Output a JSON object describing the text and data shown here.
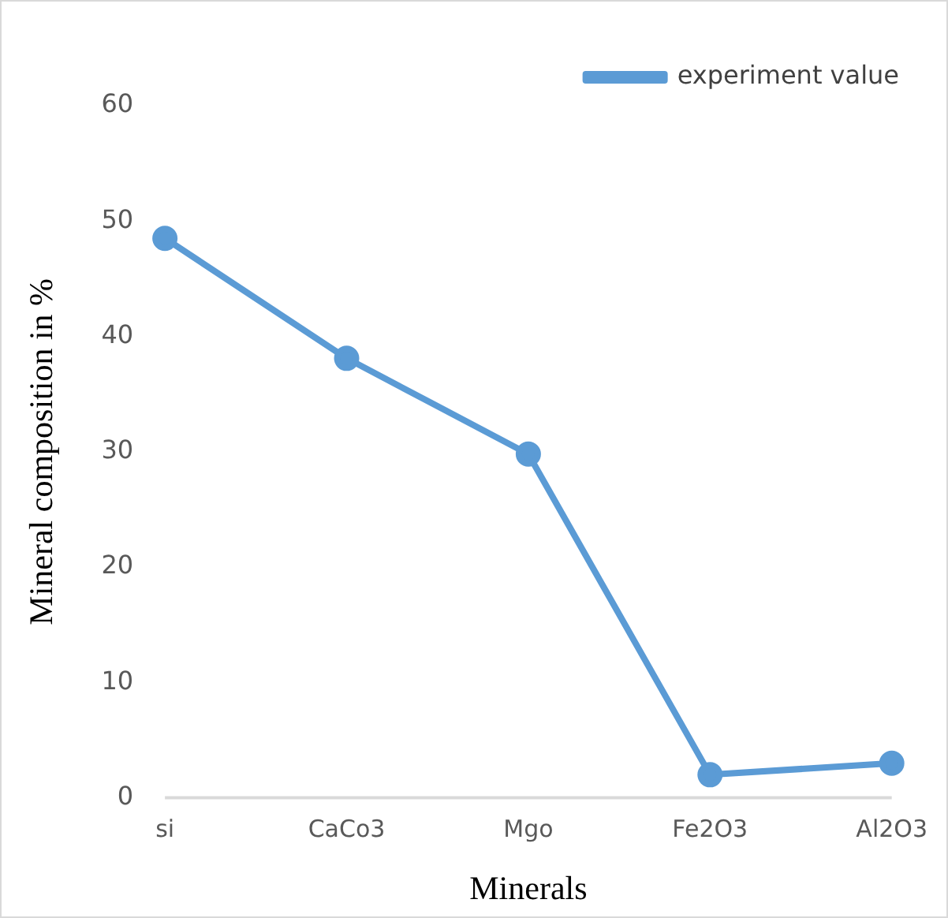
{
  "chart_data": {
    "type": "line",
    "xlabel": "Minerals",
    "ylabel": "Mineral composition in %",
    "categories": [
      "si",
      "CaCo3",
      "Mgo",
      "Fe2O3",
      "Al2O3"
    ],
    "series": [
      {
        "name": "experiment value",
        "color": "#5b9bd5",
        "values": [
          48.5,
          38.1,
          29.8,
          2.0,
          3.0
        ]
      }
    ],
    "ylim": [
      0,
      60
    ],
    "yticks": [
      0,
      10,
      20,
      30,
      40,
      50,
      60
    ],
    "grid": false,
    "legend": "top right",
    "marker": "circle",
    "line_style": "solid"
  }
}
